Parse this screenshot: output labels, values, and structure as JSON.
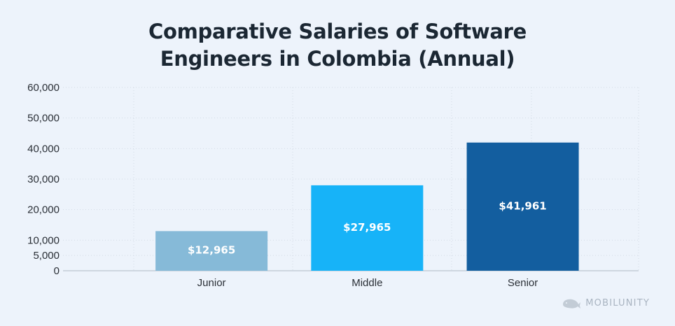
{
  "chart_data": {
    "type": "bar",
    "title_lines": [
      "Comparative Salaries of Software",
      "Engineers in Colombia (Annual)"
    ],
    "categories": [
      "Junior",
      "Middle",
      "Senior"
    ],
    "values": [
      12965,
      27965,
      41961
    ],
    "data_labels": [
      "$12,965",
      "$27,965",
      "$41,961"
    ],
    "y_ticks": [
      {
        "value": 0,
        "label": "0"
      },
      {
        "value": 5000,
        "label": "5,000"
      },
      {
        "value": 10000,
        "label": "10,000"
      },
      {
        "value": 20000,
        "label": "20,000"
      },
      {
        "value": 30000,
        "label": "30,000"
      },
      {
        "value": 40000,
        "label": "40,000"
      },
      {
        "value": 50000,
        "label": "50,000"
      },
      {
        "value": 60000,
        "label": "60,000"
      }
    ],
    "ylim": [
      0,
      60000
    ],
    "grid": true,
    "colors": [
      "#86bad8",
      "#17b3f8",
      "#135e9f"
    ]
  },
  "watermark": {
    "text": "MOBILUNITY",
    "icon": "whale-icon"
  }
}
